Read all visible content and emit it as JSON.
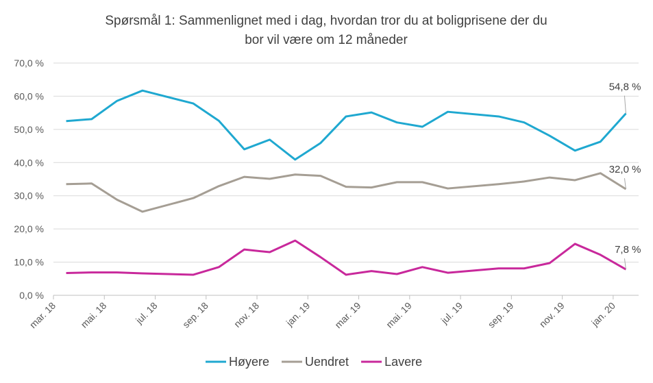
{
  "chart_data": {
    "type": "line",
    "title": [
      "Spørsmål 1: Sammenlignet  med i dag, hvordan tror du at boligprisene  der du",
      "bor vil være om 12 måneder"
    ],
    "x": [
      "2018-03",
      "2018-04",
      "2018-05",
      "2018-06",
      "2018-08",
      "2018-09",
      "2018-10",
      "2018-11",
      "2018-12",
      "2019-01",
      "2019-02",
      "2019-03",
      "2019-04",
      "2019-05",
      "2019-06",
      "2019-08",
      "2019-09",
      "2019-10",
      "2019-11",
      "2019-12",
      "2020-01"
    ],
    "xlim": [
      "2018-03",
      "2020-02"
    ],
    "xticks": [
      {
        "value": "2018-03",
        "label": "mar. 18"
      },
      {
        "value": "2018-05",
        "label": "mai. 18"
      },
      {
        "value": "2018-07",
        "label": "jul. 18"
      },
      {
        "value": "2018-09",
        "label": "sep. 18"
      },
      {
        "value": "2018-11",
        "label": "nov. 18"
      },
      {
        "value": "2019-01",
        "label": "jan. 19"
      },
      {
        "value": "2019-03",
        "label": "mar. 19"
      },
      {
        "value": "2019-05",
        "label": "mai. 19"
      },
      {
        "value": "2019-07",
        "label": "jul. 19"
      },
      {
        "value": "2019-09",
        "label": "sep. 19"
      },
      {
        "value": "2019-11",
        "label": "nov. 19"
      },
      {
        "value": "2020-01",
        "label": "jan. 20"
      }
    ],
    "ylim": [
      0,
      70
    ],
    "yticks": [
      {
        "value": 0,
        "label": "0,0 %"
      },
      {
        "value": 10,
        "label": "10,0 %"
      },
      {
        "value": 20,
        "label": "20,0 %"
      },
      {
        "value": 30,
        "label": "30,0 %"
      },
      {
        "value": 40,
        "label": "40,0 %"
      },
      {
        "value": 50,
        "label": "50,0 %"
      },
      {
        "value": 60,
        "label": "60,0 %"
      },
      {
        "value": 70,
        "label": "70,0 %"
      }
    ],
    "grid": true,
    "legend": "bottom",
    "series": [
      {
        "name": "Høyere",
        "color": "#1fa8d0",
        "values": [
          52.5,
          53.1,
          58.6,
          61.7,
          57.8,
          52.6,
          44.0,
          46.9,
          40.9,
          45.9,
          53.9,
          55.1,
          52.1,
          50.8,
          55.3,
          53.9,
          52.1,
          48.1,
          43.6,
          46.3,
          54.8
        ],
        "value_labels": [
          null,
          null,
          null,
          null,
          null,
          null,
          null,
          null,
          null,
          null,
          null,
          null,
          null,
          null,
          null,
          null,
          null,
          null,
          null,
          null,
          "54,8 %"
        ]
      },
      {
        "name": "Uendret",
        "color": "#a59e94",
        "values": [
          33.5,
          33.7,
          28.8,
          25.2,
          29.3,
          32.9,
          35.7,
          35.1,
          36.4,
          36.0,
          32.7,
          32.5,
          34.1,
          34.1,
          32.2,
          33.5,
          34.3,
          35.5,
          34.7,
          36.8,
          32.0
        ],
        "value_labels": [
          null,
          null,
          null,
          null,
          null,
          null,
          null,
          null,
          null,
          null,
          null,
          null,
          null,
          null,
          null,
          null,
          null,
          null,
          null,
          null,
          "32,0 %"
        ]
      },
      {
        "name": "Lavere",
        "color": "#c8289b",
        "values": [
          6.7,
          6.9,
          6.9,
          6.6,
          6.2,
          8.5,
          13.8,
          13.0,
          16.5,
          11.5,
          6.2,
          7.3,
          6.4,
          8.5,
          6.8,
          8.1,
          8.1,
          9.7,
          15.5,
          12.2,
          7.8
        ],
        "value_labels": [
          null,
          null,
          null,
          null,
          null,
          null,
          null,
          null,
          null,
          null,
          null,
          null,
          null,
          null,
          null,
          null,
          null,
          null,
          null,
          null,
          "7,8 %"
        ]
      }
    ]
  }
}
